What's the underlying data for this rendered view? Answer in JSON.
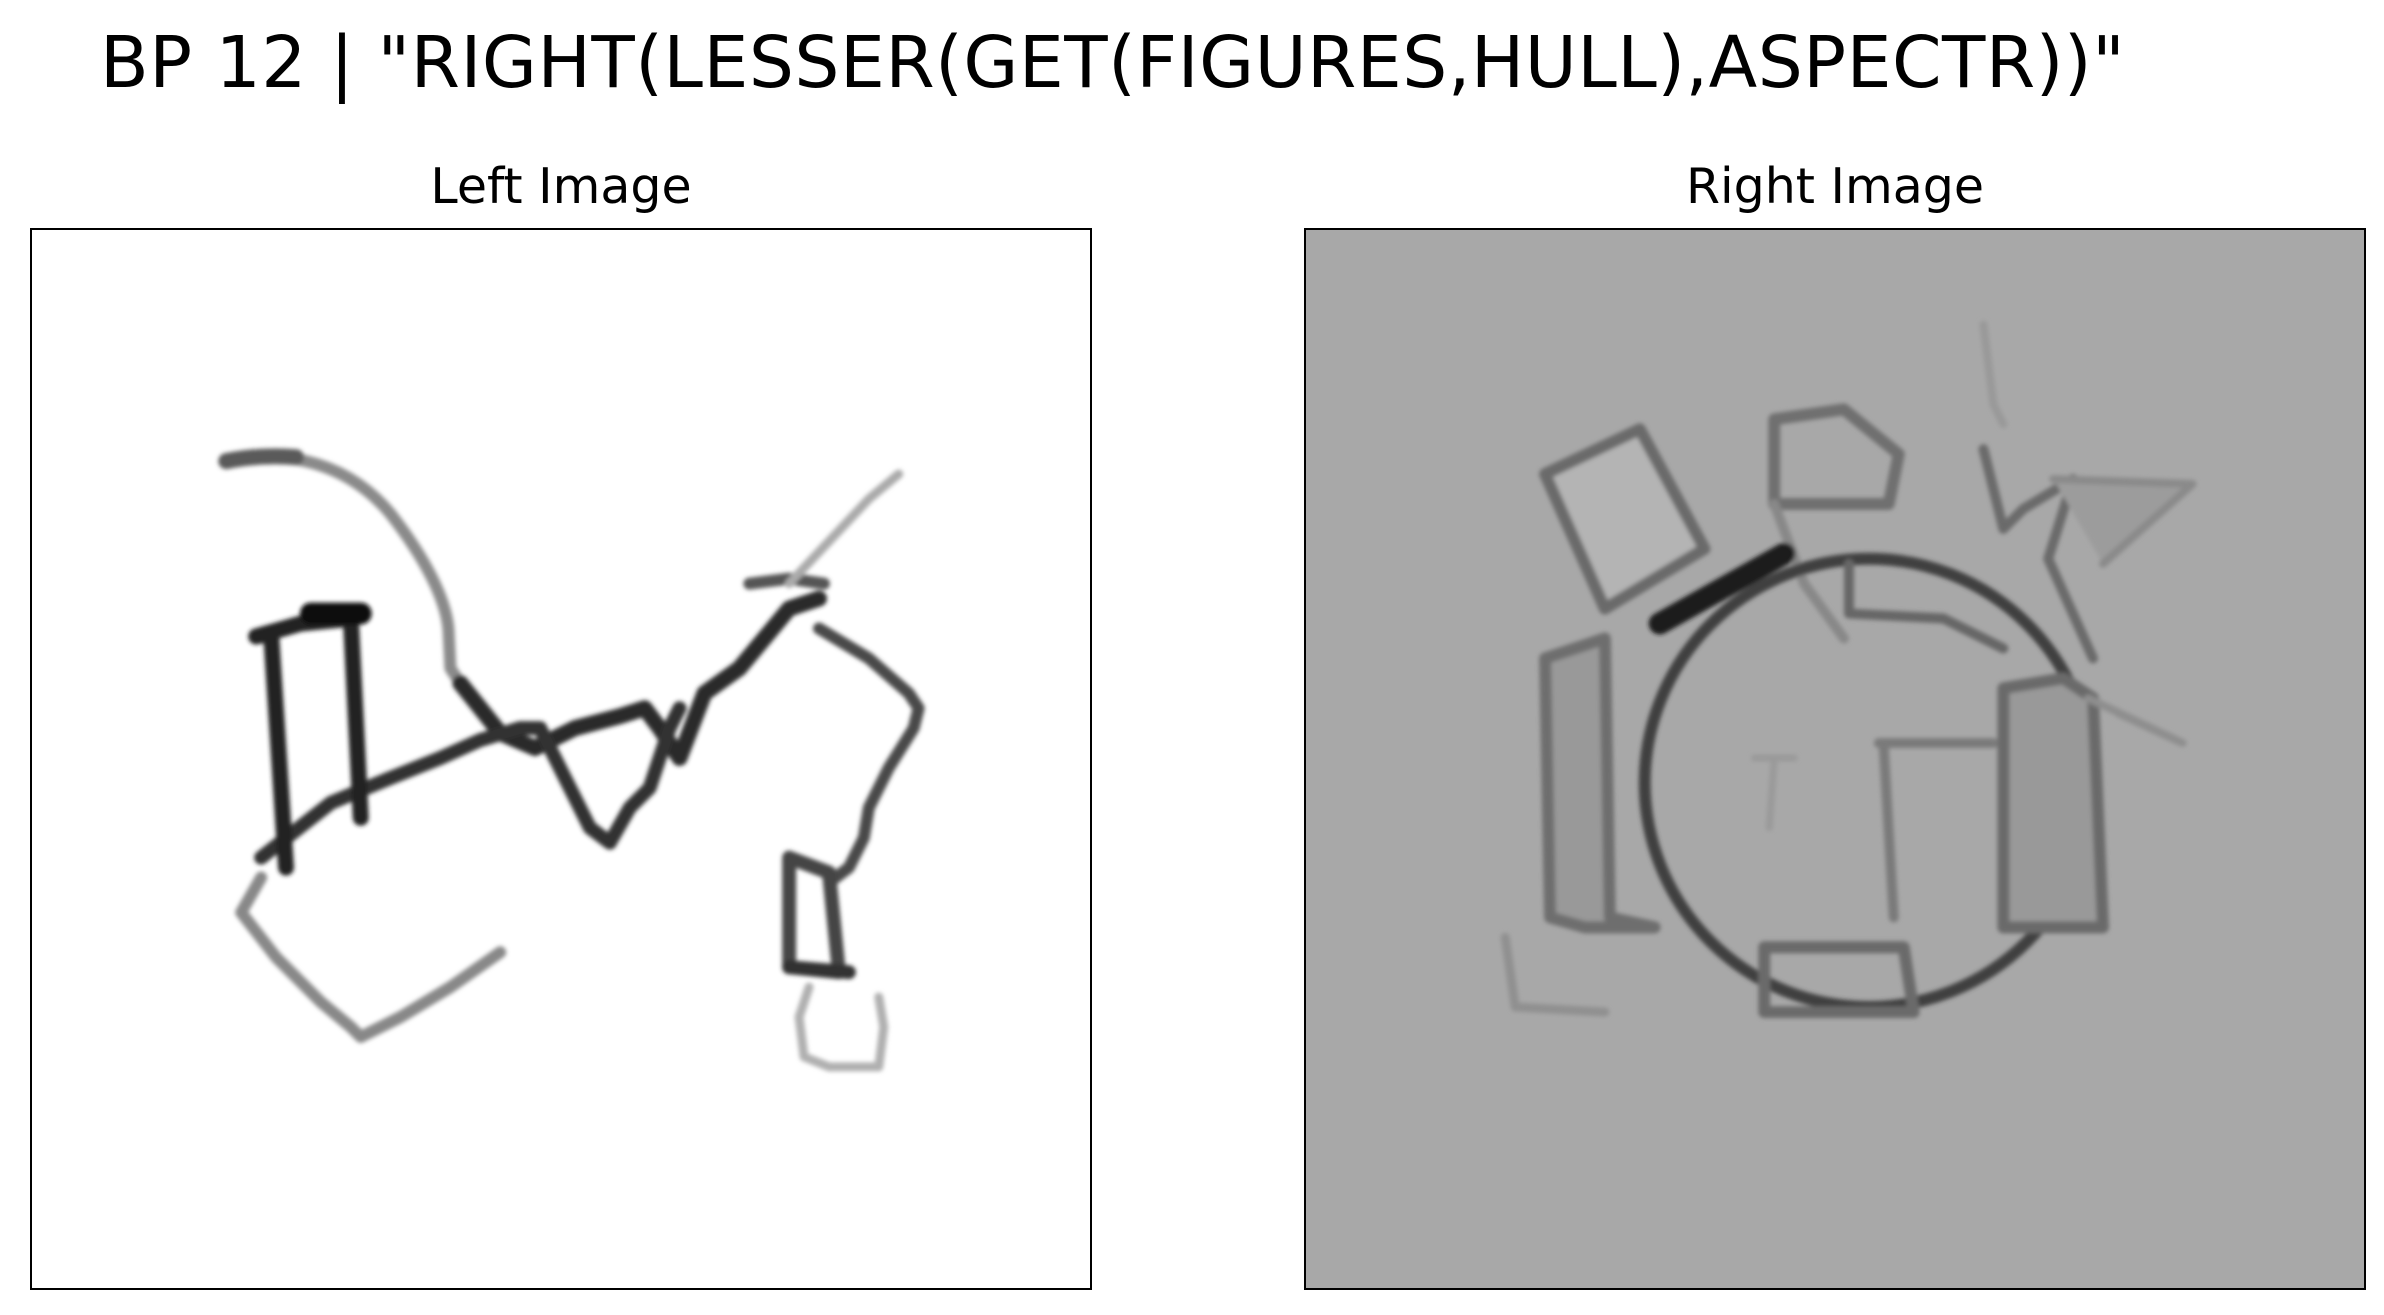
{
  "figure": {
    "title": "BP 12 | \"RIGHT(LESSER(GET(FIGURES,HULL),ASPECTR))\""
  },
  "panels": {
    "left": {
      "title": "Left Image",
      "background": "#ffffff",
      "ink": "#1a1a1a"
    },
    "right": {
      "title": "Right Image",
      "background": "#a8a8a8",
      "ink": "#2a2a2a"
    }
  }
}
